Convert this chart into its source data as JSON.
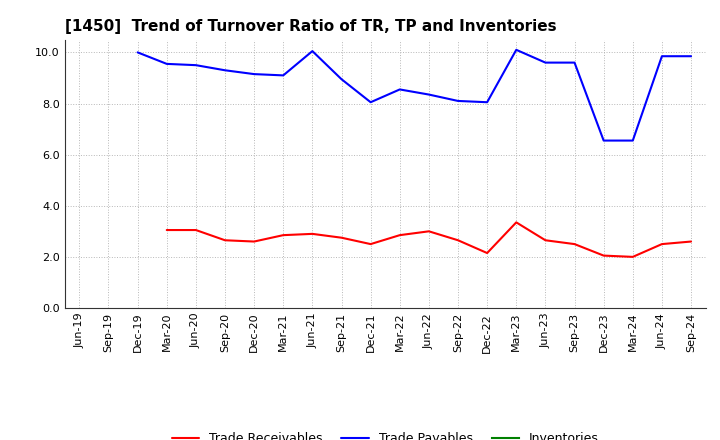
{
  "title": "[1450]  Trend of Turnover Ratio of TR, TP and Inventories",
  "x_labels": [
    "Jun-19",
    "Sep-19",
    "Dec-19",
    "Mar-20",
    "Jun-20",
    "Sep-20",
    "Dec-20",
    "Mar-21",
    "Jun-21",
    "Sep-21",
    "Dec-21",
    "Mar-22",
    "Jun-22",
    "Sep-22",
    "Dec-22",
    "Mar-23",
    "Jun-23",
    "Sep-23",
    "Dec-23",
    "Mar-24",
    "Jun-24",
    "Sep-24"
  ],
  "trade_receivables": [
    null,
    null,
    null,
    3.05,
    3.05,
    2.65,
    2.6,
    2.85,
    2.9,
    2.75,
    2.5,
    2.85,
    3.0,
    2.65,
    2.15,
    3.35,
    2.65,
    2.5,
    2.05,
    2.0,
    2.5,
    2.6
  ],
  "trade_payables": [
    null,
    null,
    10.0,
    9.55,
    9.5,
    9.3,
    9.15,
    9.1,
    10.05,
    8.95,
    8.05,
    8.55,
    8.35,
    8.1,
    8.05,
    10.1,
    9.6,
    9.6,
    6.55,
    6.55,
    9.85,
    9.85
  ],
  "inventories": [
    null,
    null,
    null,
    null,
    null,
    null,
    null,
    null,
    null,
    null,
    null,
    null,
    null,
    null,
    null,
    null,
    null,
    null,
    null,
    null,
    null,
    null
  ],
  "ylim": [
    0.0,
    10.5
  ],
  "yticks": [
    0.0,
    2.0,
    4.0,
    6.0,
    8.0,
    10.0
  ],
  "line_colors": {
    "trade_receivables": "#ff0000",
    "trade_payables": "#0000ff",
    "inventories": "#008000"
  },
  "legend_labels": [
    "Trade Receivables",
    "Trade Payables",
    "Inventories"
  ],
  "background_color": "#ffffff",
  "grid_color": "#b0b0b0",
  "title_fontsize": 11,
  "tick_fontsize": 8,
  "legend_fontsize": 9,
  "linewidth": 1.5
}
